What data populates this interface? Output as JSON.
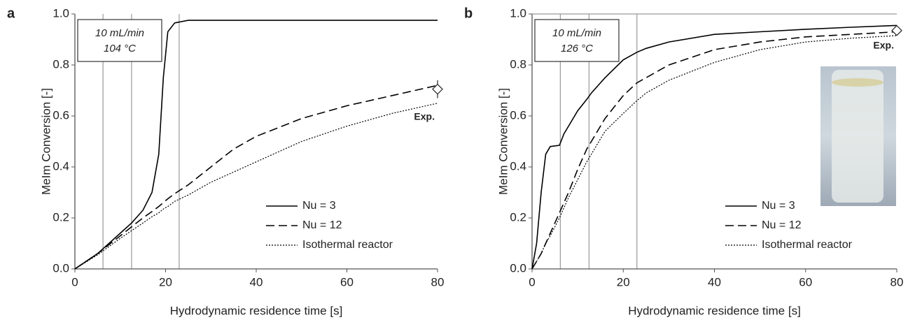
{
  "chart_data": [
    {
      "type": "line",
      "panel": "a",
      "xlabel": "Hydrodynamic residence time [s]",
      "ylabel": "MeIm Conversion [-]",
      "annotation": [
        "10 mL/min",
        "104 °C"
      ],
      "x": [
        0,
        5,
        10,
        12.5,
        15,
        17,
        18.5,
        19.5,
        20.5,
        22,
        25,
        30,
        35,
        40,
        50,
        60,
        70,
        80
      ],
      "series": [
        {
          "name": "Nu = 3",
          "color": "#000000",
          "dash": "solid",
          "values": [
            0,
            0.06,
            0.14,
            0.18,
            0.23,
            0.3,
            0.45,
            0.75,
            0.93,
            0.965,
            0.975,
            0.975,
            0.975,
            0.975,
            0.975,
            0.975,
            0.975,
            0.975
          ]
        },
        {
          "name": "Nu = 12",
          "color": "#000000",
          "dash": "dashed",
          "values": [
            0,
            0.06,
            0.13,
            0.165,
            0.2,
            0.225,
            0.245,
            0.26,
            0.275,
            0.295,
            0.33,
            0.4,
            0.47,
            0.52,
            0.59,
            0.64,
            0.68,
            0.72
          ]
        },
        {
          "name": "Isothermal reactor",
          "color": "#000000",
          "dash": "dotted",
          "values": [
            0,
            0.055,
            0.12,
            0.15,
            0.18,
            0.205,
            0.22,
            0.235,
            0.245,
            0.265,
            0.29,
            0.34,
            0.38,
            0.42,
            0.5,
            0.56,
            0.61,
            0.65
          ]
        }
      ],
      "experiment": {
        "label": "Exp.",
        "x": 80,
        "value": 0.705,
        "error": 0.035
      },
      "vlines": [
        6.2,
        12.5,
        23
      ],
      "xlim": [
        0,
        80
      ],
      "xticks": [
        0,
        20,
        40,
        60,
        80
      ],
      "ylim": [
        0,
        1
      ],
      "yticks": [
        {
          "value": 0,
          "label": "0.0"
        },
        0.2,
        0.4,
        0.6,
        0.8,
        {
          "value": 1,
          "label": "1.0"
        }
      ],
      "legend": "lower right"
    },
    {
      "type": "line",
      "panel": "b",
      "xlabel": "Hydrodynamic residence time [s]",
      "ylabel": "MeIm Conversion [-]",
      "annotation": [
        "10 mL/min",
        "126 °C"
      ],
      "x": [
        0,
        1,
        2,
        3,
        4,
        6,
        7,
        8,
        10,
        12,
        13,
        15,
        16,
        20,
        23,
        25,
        30,
        40,
        50,
        60,
        70,
        80
      ],
      "series": [
        {
          "name": "Nu = 3",
          "color": "#000000",
          "dash": "solid",
          "values": [
            0,
            0.1,
            0.3,
            0.45,
            0.48,
            0.485,
            0.53,
            0.56,
            0.62,
            0.665,
            0.69,
            0.73,
            0.75,
            0.82,
            0.85,
            0.865,
            0.89,
            0.92,
            0.93,
            0.94,
            0.948,
            0.955
          ]
        },
        {
          "name": "Nu = 12",
          "color": "#000000",
          "dash": "dashed",
          "values": [
            0,
            0.03,
            0.06,
            0.1,
            0.14,
            0.22,
            0.26,
            0.3,
            0.39,
            0.47,
            0.5,
            0.56,
            0.59,
            0.68,
            0.73,
            0.75,
            0.8,
            0.86,
            0.89,
            0.91,
            0.92,
            0.93
          ]
        },
        {
          "name": "Isothermal reactor",
          "color": "#000000",
          "dash": "dotted",
          "values": [
            0,
            0.03,
            0.06,
            0.1,
            0.13,
            0.2,
            0.24,
            0.28,
            0.35,
            0.42,
            0.45,
            0.51,
            0.54,
            0.61,
            0.66,
            0.69,
            0.74,
            0.81,
            0.86,
            0.89,
            0.905,
            0.915
          ]
        }
      ],
      "experiment": {
        "label": "Exp.",
        "x": 80,
        "value": 0.935,
        "error": 0.01
      },
      "vlines": [
        6.2,
        12.5,
        23
      ],
      "xlim": [
        0,
        80
      ],
      "xticks": [
        0,
        20,
        40,
        60,
        80
      ],
      "ylim": [
        0,
        1
      ],
      "yticks": [
        {
          "value": 0,
          "label": "0.0"
        },
        0.2,
        0.4,
        0.6,
        0.8,
        {
          "value": 1,
          "label": "1.0"
        }
      ],
      "legend": "lower right"
    }
  ]
}
